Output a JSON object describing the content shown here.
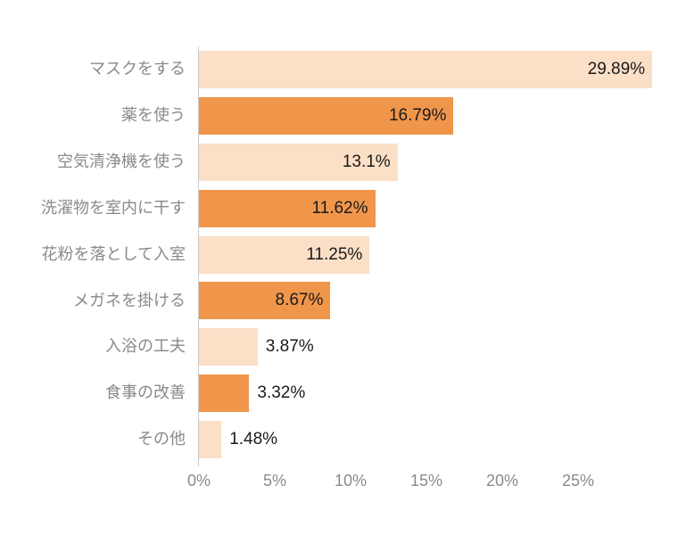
{
  "chart_data": {
    "type": "bar",
    "orientation": "horizontal",
    "title": "",
    "xlabel": "",
    "ylabel": "",
    "grid": false,
    "legend": false,
    "categories": [
      "マスクをする",
      "薬を使う",
      "空気清浄機を使う",
      "洗濯物を室内に干す",
      "花粉を落として入室",
      "メガネを掛ける",
      "入浴の工夫",
      "食事の改善",
      "その他"
    ],
    "values": [
      29.89,
      16.79,
      13.1,
      11.62,
      11.25,
      8.67,
      3.87,
      3.32,
      1.48
    ],
    "value_labels": [
      "29.89%",
      "16.79%",
      "13.1%",
      "11.62%",
      "11.25%",
      "8.67%",
      "3.87%",
      "3.32%",
      "1.48%"
    ],
    "x_ticks": [
      "0%",
      "5%",
      "10%",
      "15%",
      "20%",
      "25%"
    ],
    "x_tick_values": [
      0,
      5,
      10,
      15,
      20,
      25
    ],
    "xlim": [
      0,
      30
    ],
    "colors": {
      "bar_even": "#FBDFC7",
      "bar_odd": "#F0964B",
      "value_text": "#1a1a1a",
      "category_text": "#8a8a8a",
      "tick_text": "#8a8a8a",
      "axis_line": "#c9c9c9",
      "background": "#ffffff"
    }
  }
}
